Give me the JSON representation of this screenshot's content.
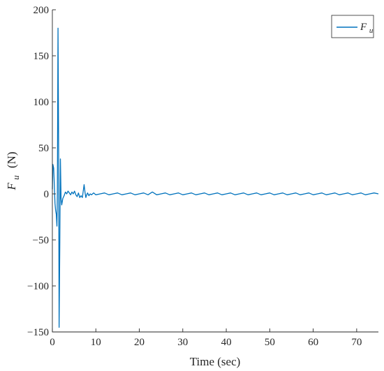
{
  "chart_data": {
    "type": "line",
    "xlabel": "Time (sec)",
    "ylabel_main": "F",
    "ylabel_sub": "u",
    "ylabel_unit": "(N)",
    "xlim": [
      0,
      75
    ],
    "ylim": [
      -150,
      200
    ],
    "xticks": [
      0,
      10,
      20,
      30,
      40,
      50,
      60,
      70
    ],
    "yticks": [
      -150,
      -100,
      -50,
      0,
      50,
      100,
      150,
      200
    ],
    "grid": false,
    "legend_position": "top-right",
    "series": [
      {
        "name_main": "F",
        "name_sub": "u",
        "color": "#0072BD",
        "points": [
          [
            0.0,
            5
          ],
          [
            0.12,
            32
          ],
          [
            0.3,
            28
          ],
          [
            0.45,
            10
          ],
          [
            0.6,
            -10
          ],
          [
            0.75,
            -18
          ],
          [
            0.9,
            -22
          ],
          [
            1.05,
            -35
          ],
          [
            1.15,
            0
          ],
          [
            1.3,
            180
          ],
          [
            1.45,
            40
          ],
          [
            1.55,
            -145
          ],
          [
            1.7,
            -60
          ],
          [
            1.85,
            38
          ],
          [
            2.0,
            -5
          ],
          [
            2.15,
            -12
          ],
          [
            2.4,
            -5
          ],
          [
            2.7,
            -2
          ],
          [
            3.0,
            2
          ],
          [
            3.3,
            0
          ],
          [
            3.6,
            3
          ],
          [
            3.9,
            1
          ],
          [
            4.2,
            -1
          ],
          [
            4.5,
            2
          ],
          [
            4.8,
            0
          ],
          [
            5.1,
            3
          ],
          [
            5.4,
            -1
          ],
          [
            5.7,
            -3
          ],
          [
            6.0,
            1
          ],
          [
            6.3,
            -4
          ],
          [
            6.6,
            -2
          ],
          [
            6.9,
            -4
          ],
          [
            7.1,
            3
          ],
          [
            7.3,
            10
          ],
          [
            7.5,
            2
          ],
          [
            7.7,
            -4
          ],
          [
            7.9,
            -1
          ],
          [
            8.1,
            1
          ],
          [
            8.4,
            -2
          ],
          [
            8.7,
            0
          ],
          [
            9.0,
            -1
          ],
          [
            9.5,
            1
          ],
          [
            10.0,
            -1
          ],
          [
            11,
            0
          ],
          [
            12,
            1
          ],
          [
            13,
            -1
          ],
          [
            14,
            0
          ],
          [
            15,
            1
          ],
          [
            16,
            -1
          ],
          [
            17,
            0
          ],
          [
            18,
            1
          ],
          [
            19,
            -1
          ],
          [
            20,
            0
          ],
          [
            21,
            1
          ],
          [
            22,
            -1
          ],
          [
            23,
            2
          ],
          [
            24,
            -1
          ],
          [
            25,
            0
          ],
          [
            26,
            1
          ],
          [
            27,
            -1
          ],
          [
            28,
            0
          ],
          [
            29,
            1
          ],
          [
            30,
            -1
          ],
          [
            31,
            0
          ],
          [
            32,
            1
          ],
          [
            33,
            -1
          ],
          [
            34,
            0
          ],
          [
            35,
            1
          ],
          [
            36,
            -1
          ],
          [
            37,
            0
          ],
          [
            38,
            1
          ],
          [
            39,
            -1
          ],
          [
            40,
            0
          ],
          [
            41,
            1
          ],
          [
            42,
            -1
          ],
          [
            43,
            0
          ],
          [
            44,
            1
          ],
          [
            45,
            -1
          ],
          [
            46,
            0
          ],
          [
            47,
            1
          ],
          [
            48,
            -1
          ],
          [
            49,
            0
          ],
          [
            50,
            1
          ],
          [
            51,
            -1
          ],
          [
            52,
            0
          ],
          [
            53,
            1
          ],
          [
            54,
            -1
          ],
          [
            55,
            0
          ],
          [
            56,
            1
          ],
          [
            57,
            -1
          ],
          [
            58,
            0
          ],
          [
            59,
            1
          ],
          [
            60,
            -1
          ],
          [
            61,
            0
          ],
          [
            62,
            1
          ],
          [
            63,
            -1
          ],
          [
            64,
            0
          ],
          [
            65,
            1
          ],
          [
            66,
            -1
          ],
          [
            67,
            0
          ],
          [
            68,
            1
          ],
          [
            69,
            -1
          ],
          [
            70,
            0
          ],
          [
            71,
            1
          ],
          [
            72,
            -1
          ],
          [
            73,
            0
          ],
          [
            74,
            1
          ],
          [
            75,
            0
          ]
        ]
      }
    ]
  }
}
